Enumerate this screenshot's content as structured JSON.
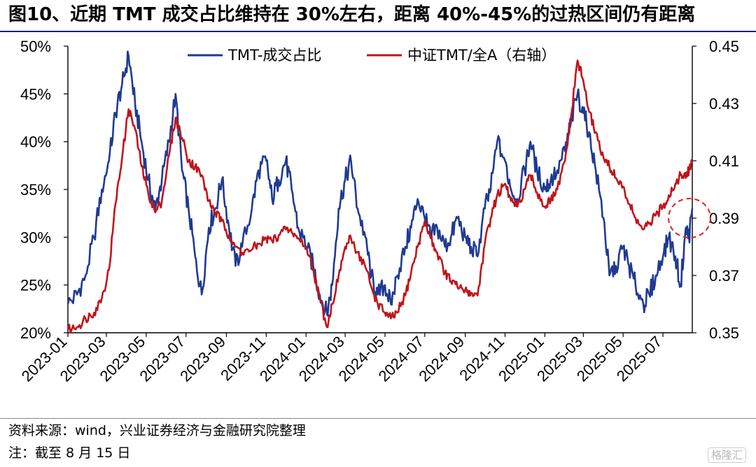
{
  "header": {
    "title": "图10、近期 TMT 成交占比维持在 30%左右，距离 40%-45%的过热区间仍有距离"
  },
  "footer": {
    "source": "资料来源：wind，兴业证券经济与金融研究院整理",
    "note": "注：截至 8 月 15 日",
    "watermark": "格隆汇"
  },
  "colors": {
    "blue": "#1f3a93",
    "red": "#c0151b",
    "circle": "#e02020"
  },
  "chart_data": {
    "type": "line",
    "title": "",
    "legend_placement": "top-center",
    "grid": false,
    "y_left": {
      "label": "",
      "ylim": [
        0.2,
        0.5
      ],
      "ticks": [
        "20%",
        "25%",
        "30%",
        "35%",
        "40%",
        "45%",
        "50%"
      ]
    },
    "y_right": {
      "label": "",
      "ylim": [
        0.35,
        0.45
      ],
      "ticks": [
        "0.35",
        "0.37",
        "0.39",
        "0.41",
        "0.43",
        "0.45"
      ]
    },
    "x_ticks": [
      "2023-01",
      "2023-03",
      "2023-05",
      "2023-07",
      "2023-09",
      "2023-11",
      "2024-01",
      "2024-03",
      "2024-05",
      "2024-07",
      "2024-09",
      "2024-11",
      "2025-01",
      "2025-03",
      "2025-05",
      "2025-07"
    ],
    "x_range": [
      "2023-01-01",
      "2025-08-15"
    ],
    "series": [
      {
        "name": "TMT-成交占比",
        "axis": "left",
        "color": "#1f3a93",
        "points": [
          [
            "2023-01-01",
            0.23
          ],
          [
            "2023-01-15",
            0.24
          ],
          [
            "2023-01-28",
            0.26
          ],
          [
            "2023-02-10",
            0.3
          ],
          [
            "2023-02-22",
            0.35
          ],
          [
            "2023-03-05",
            0.38
          ],
          [
            "2023-03-15",
            0.43
          ],
          [
            "2023-03-25",
            0.46
          ],
          [
            "2023-04-04",
            0.49
          ],
          [
            "2023-04-14",
            0.44
          ],
          [
            "2023-04-24",
            0.4
          ],
          [
            "2023-05-04",
            0.36
          ],
          [
            "2023-05-15",
            0.33
          ],
          [
            "2023-05-25",
            0.36
          ],
          [
            "2023-06-05",
            0.4
          ],
          [
            "2023-06-15",
            0.45
          ],
          [
            "2023-06-25",
            0.37
          ],
          [
            "2023-07-05",
            0.33
          ],
          [
            "2023-07-15",
            0.28
          ],
          [
            "2023-07-25",
            0.24
          ],
          [
            "2023-08-05",
            0.31
          ],
          [
            "2023-08-15",
            0.33
          ],
          [
            "2023-08-25",
            0.36
          ],
          [
            "2023-09-05",
            0.31
          ],
          [
            "2023-09-15",
            0.27
          ],
          [
            "2023-09-25",
            0.29
          ],
          [
            "2023-10-10",
            0.33
          ],
          [
            "2023-10-20",
            0.37
          ],
          [
            "2023-11-01",
            0.38
          ],
          [
            "2023-11-10",
            0.34
          ],
          [
            "2023-11-20",
            0.36
          ],
          [
            "2023-12-01",
            0.38
          ],
          [
            "2023-12-10",
            0.35
          ],
          [
            "2023-12-20",
            0.31
          ],
          [
            "2024-01-02",
            0.29
          ],
          [
            "2024-01-12",
            0.27
          ],
          [
            "2024-01-22",
            0.24
          ],
          [
            "2024-02-02",
            0.22
          ],
          [
            "2024-02-10",
            0.25
          ],
          [
            "2024-02-20",
            0.33
          ],
          [
            "2024-03-01",
            0.36
          ],
          [
            "2024-03-10",
            0.38
          ],
          [
            "2024-03-20",
            0.33
          ],
          [
            "2024-04-01",
            0.3
          ],
          [
            "2024-04-10",
            0.26
          ],
          [
            "2024-04-20",
            0.24
          ],
          [
            "2024-05-01",
            0.25
          ],
          [
            "2024-05-10",
            0.23
          ],
          [
            "2024-05-20",
            0.26
          ],
          [
            "2024-06-01",
            0.29
          ],
          [
            "2024-06-10",
            0.31
          ],
          [
            "2024-06-20",
            0.34
          ],
          [
            "2024-07-01",
            0.32
          ],
          [
            "2024-07-10",
            0.3
          ],
          [
            "2024-07-20",
            0.31
          ],
          [
            "2024-08-01",
            0.29
          ],
          [
            "2024-08-10",
            0.3
          ],
          [
            "2024-08-20",
            0.32
          ],
          [
            "2024-09-01",
            0.3
          ],
          [
            "2024-09-10",
            0.29
          ],
          [
            "2024-09-20",
            0.28
          ],
          [
            "2024-10-01",
            0.33
          ],
          [
            "2024-10-10",
            0.35
          ],
          [
            "2024-10-20",
            0.4
          ],
          [
            "2024-11-01",
            0.38
          ],
          [
            "2024-11-10",
            0.35
          ],
          [
            "2024-11-20",
            0.34
          ],
          [
            "2024-12-01",
            0.37
          ],
          [
            "2024-12-10",
            0.4
          ],
          [
            "2024-12-20",
            0.37
          ],
          [
            "2025-01-01",
            0.35
          ],
          [
            "2025-01-10",
            0.36
          ],
          [
            "2025-01-20",
            0.37
          ],
          [
            "2025-02-01",
            0.39
          ],
          [
            "2025-02-10",
            0.42
          ],
          [
            "2025-02-20",
            0.45
          ],
          [
            "2025-03-01",
            0.43
          ],
          [
            "2025-03-10",
            0.41
          ],
          [
            "2025-03-20",
            0.37
          ],
          [
            "2025-04-01",
            0.32
          ],
          [
            "2025-04-10",
            0.26
          ],
          [
            "2025-04-20",
            0.27
          ],
          [
            "2025-05-01",
            0.29
          ],
          [
            "2025-05-10",
            0.27
          ],
          [
            "2025-05-20",
            0.25
          ],
          [
            "2025-06-01",
            0.23
          ],
          [
            "2025-06-10",
            0.24
          ],
          [
            "2025-06-20",
            0.26
          ],
          [
            "2025-07-01",
            0.28
          ],
          [
            "2025-07-10",
            0.3
          ],
          [
            "2025-07-20",
            0.28
          ],
          [
            "2025-07-28",
            0.25
          ],
          [
            "2025-08-05",
            0.31
          ],
          [
            "2025-08-10",
            0.3
          ],
          [
            "2025-08-15",
            0.33
          ]
        ]
      },
      {
        "name": "中证TMT/全A（右轴）",
        "axis": "right",
        "color": "#c0151b",
        "points": [
          [
            "2023-01-01",
            0.351
          ],
          [
            "2023-01-15",
            0.352
          ],
          [
            "2023-01-28",
            0.355
          ],
          [
            "2023-02-10",
            0.357
          ],
          [
            "2023-02-22",
            0.362
          ],
          [
            "2023-03-05",
            0.372
          ],
          [
            "2023-03-15",
            0.395
          ],
          [
            "2023-03-25",
            0.411
          ],
          [
            "2023-04-04",
            0.428
          ],
          [
            "2023-04-14",
            0.421
          ],
          [
            "2023-04-24",
            0.408
          ],
          [
            "2023-05-04",
            0.399
          ],
          [
            "2023-05-15",
            0.392
          ],
          [
            "2023-05-25",
            0.396
          ],
          [
            "2023-06-05",
            0.412
          ],
          [
            "2023-06-15",
            0.425
          ],
          [
            "2023-06-25",
            0.418
          ],
          [
            "2023-07-05",
            0.41
          ],
          [
            "2023-07-15",
            0.408
          ],
          [
            "2023-07-25",
            0.405
          ],
          [
            "2023-08-05",
            0.396
          ],
          [
            "2023-08-15",
            0.392
          ],
          [
            "2023-08-25",
            0.389
          ],
          [
            "2023-09-05",
            0.384
          ],
          [
            "2023-09-15",
            0.38
          ],
          [
            "2023-09-25",
            0.378
          ],
          [
            "2023-10-10",
            0.379
          ],
          [
            "2023-10-20",
            0.381
          ],
          [
            "2023-11-01",
            0.383
          ],
          [
            "2023-11-10",
            0.382
          ],
          [
            "2023-11-20",
            0.384
          ],
          [
            "2023-12-01",
            0.386
          ],
          [
            "2023-12-10",
            0.385
          ],
          [
            "2023-12-20",
            0.383
          ],
          [
            "2024-01-02",
            0.38
          ],
          [
            "2024-01-12",
            0.372
          ],
          [
            "2024-01-22",
            0.362
          ],
          [
            "2024-02-02",
            0.352
          ],
          [
            "2024-02-10",
            0.36
          ],
          [
            "2024-02-20",
            0.37
          ],
          [
            "2024-03-01",
            0.38
          ],
          [
            "2024-03-10",
            0.383
          ],
          [
            "2024-03-20",
            0.378
          ],
          [
            "2024-04-01",
            0.373
          ],
          [
            "2024-04-10",
            0.366
          ],
          [
            "2024-04-20",
            0.36
          ],
          [
            "2024-05-01",
            0.357
          ],
          [
            "2024-05-10",
            0.355
          ],
          [
            "2024-05-20",
            0.357
          ],
          [
            "2024-06-01",
            0.363
          ],
          [
            "2024-06-10",
            0.371
          ],
          [
            "2024-06-20",
            0.38
          ],
          [
            "2024-07-01",
            0.389
          ],
          [
            "2024-07-10",
            0.383
          ],
          [
            "2024-07-20",
            0.378
          ],
          [
            "2024-08-01",
            0.371
          ],
          [
            "2024-08-10",
            0.368
          ],
          [
            "2024-08-20",
            0.366
          ],
          [
            "2024-09-01",
            0.365
          ],
          [
            "2024-09-10",
            0.364
          ],
          [
            "2024-09-20",
            0.363
          ],
          [
            "2024-10-01",
            0.381
          ],
          [
            "2024-10-10",
            0.39
          ],
          [
            "2024-10-20",
            0.398
          ],
          [
            "2024-11-01",
            0.402
          ],
          [
            "2024-11-10",
            0.396
          ],
          [
            "2024-11-20",
            0.394
          ],
          [
            "2024-12-01",
            0.4
          ],
          [
            "2024-12-10",
            0.405
          ],
          [
            "2024-12-20",
            0.399
          ],
          [
            "2025-01-01",
            0.394
          ],
          [
            "2025-01-10",
            0.396
          ],
          [
            "2025-01-20",
            0.4
          ],
          [
            "2025-02-01",
            0.41
          ],
          [
            "2025-02-10",
            0.425
          ],
          [
            "2025-02-20",
            0.445
          ],
          [
            "2025-03-01",
            0.438
          ],
          [
            "2025-03-10",
            0.427
          ],
          [
            "2025-03-20",
            0.42
          ],
          [
            "2025-04-01",
            0.411
          ],
          [
            "2025-04-10",
            0.408
          ],
          [
            "2025-04-20",
            0.404
          ],
          [
            "2025-05-01",
            0.401
          ],
          [
            "2025-05-10",
            0.395
          ],
          [
            "2025-05-20",
            0.39
          ],
          [
            "2025-06-01",
            0.386
          ],
          [
            "2025-06-10",
            0.388
          ],
          [
            "2025-06-20",
            0.391
          ],
          [
            "2025-07-01",
            0.394
          ],
          [
            "2025-07-10",
            0.398
          ],
          [
            "2025-07-20",
            0.402
          ],
          [
            "2025-07-28",
            0.405
          ],
          [
            "2025-08-05",
            0.404
          ],
          [
            "2025-08-10",
            0.407
          ],
          [
            "2025-08-15",
            0.41
          ]
        ]
      }
    ]
  }
}
